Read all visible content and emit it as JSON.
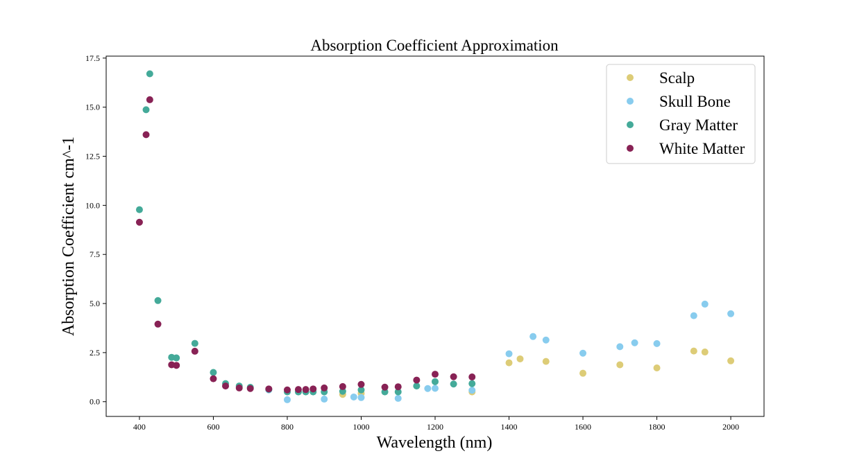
{
  "chart_data": {
    "type": "scatter",
    "title": "Absorption Coefficient Approximation",
    "xlabel": "Wavelength (nm)",
    "ylabel": "Absorption Coefficient cm^-1",
    "xlim": [
      310,
      2090
    ],
    "ylim": [
      -0.75,
      17.6
    ],
    "xticks": [
      400,
      600,
      800,
      1000,
      1200,
      1400,
      1600,
      1800,
      2000
    ],
    "xtick_labels": [
      "400",
      "600",
      "800",
      "1000",
      "1200",
      "1400",
      "1600",
      "1800",
      "2000"
    ],
    "yticks": [
      0,
      2.5,
      5,
      7.5,
      10,
      12.5,
      15,
      17.5
    ],
    "ytick_labels": [
      "0.0",
      "2.5",
      "5.0",
      "7.5",
      "10.0",
      "12.5",
      "15.0",
      "17.5"
    ],
    "grid": false,
    "legend": "top-right",
    "series": [
      {
        "name": "Scalp",
        "color": "#DDCC77",
        "points": [
          [
            950,
            0.37
          ],
          [
            1000,
            0.42
          ],
          [
            1300,
            0.5
          ],
          [
            1400,
            1.98
          ],
          [
            1430,
            2.18
          ],
          [
            1500,
            2.05
          ],
          [
            1600,
            1.45
          ],
          [
            1700,
            1.88
          ],
          [
            1800,
            1.72
          ],
          [
            1900,
            2.58
          ],
          [
            1930,
            2.53
          ],
          [
            2000,
            2.08
          ]
        ]
      },
      {
        "name": "Skull Bone",
        "color": "#88CCEE",
        "points": [
          [
            750,
            0.6
          ],
          [
            800,
            0.1
          ],
          [
            830,
            0.5
          ],
          [
            900,
            0.13
          ],
          [
            980,
            0.24
          ],
          [
            1000,
            0.21
          ],
          [
            1100,
            0.17
          ],
          [
            1180,
            0.67
          ],
          [
            1200,
            0.68
          ],
          [
            1300,
            0.58
          ],
          [
            1400,
            2.44
          ],
          [
            1465,
            3.32
          ],
          [
            1500,
            3.14
          ],
          [
            1600,
            2.47
          ],
          [
            1700,
            2.8
          ],
          [
            1740,
            3.0
          ],
          [
            1800,
            2.96
          ],
          [
            1900,
            4.38
          ],
          [
            1930,
            4.97
          ],
          [
            2000,
            4.48
          ]
        ]
      },
      {
        "name": "Gray Matter",
        "color": "#44AA99",
        "points": [
          [
            400,
            9.78
          ],
          [
            418,
            14.87
          ],
          [
            428,
            16.7
          ],
          [
            450,
            5.15
          ],
          [
            487,
            2.26
          ],
          [
            500,
            2.23
          ],
          [
            550,
            2.97
          ],
          [
            600,
            1.49
          ],
          [
            633,
            0.92
          ],
          [
            670,
            0.8
          ],
          [
            700,
            0.73
          ],
          [
            750,
            0.63
          ],
          [
            800,
            0.5
          ],
          [
            830,
            0.5
          ],
          [
            850,
            0.5
          ],
          [
            870,
            0.5
          ],
          [
            900,
            0.5
          ],
          [
            950,
            0.53
          ],
          [
            1000,
            0.6
          ],
          [
            1064,
            0.5
          ],
          [
            1100,
            0.5
          ],
          [
            1150,
            0.8
          ],
          [
            1200,
            1.02
          ],
          [
            1250,
            0.9
          ],
          [
            1300,
            0.92
          ]
        ]
      },
      {
        "name": "White Matter",
        "color": "#882255",
        "points": [
          [
            400,
            9.14
          ],
          [
            418,
            13.6
          ],
          [
            428,
            15.38
          ],
          [
            450,
            3.95
          ],
          [
            487,
            1.88
          ],
          [
            500,
            1.85
          ],
          [
            550,
            2.57
          ],
          [
            600,
            1.17
          ],
          [
            633,
            0.8
          ],
          [
            670,
            0.7
          ],
          [
            700,
            0.67
          ],
          [
            750,
            0.65
          ],
          [
            800,
            0.6
          ],
          [
            830,
            0.62
          ],
          [
            850,
            0.62
          ],
          [
            870,
            0.65
          ],
          [
            900,
            0.7
          ],
          [
            950,
            0.77
          ],
          [
            1000,
            0.88
          ],
          [
            1064,
            0.74
          ],
          [
            1100,
            0.76
          ],
          [
            1150,
            1.1
          ],
          [
            1200,
            1.4
          ],
          [
            1250,
            1.27
          ],
          [
            1300,
            1.26
          ]
        ]
      }
    ]
  }
}
